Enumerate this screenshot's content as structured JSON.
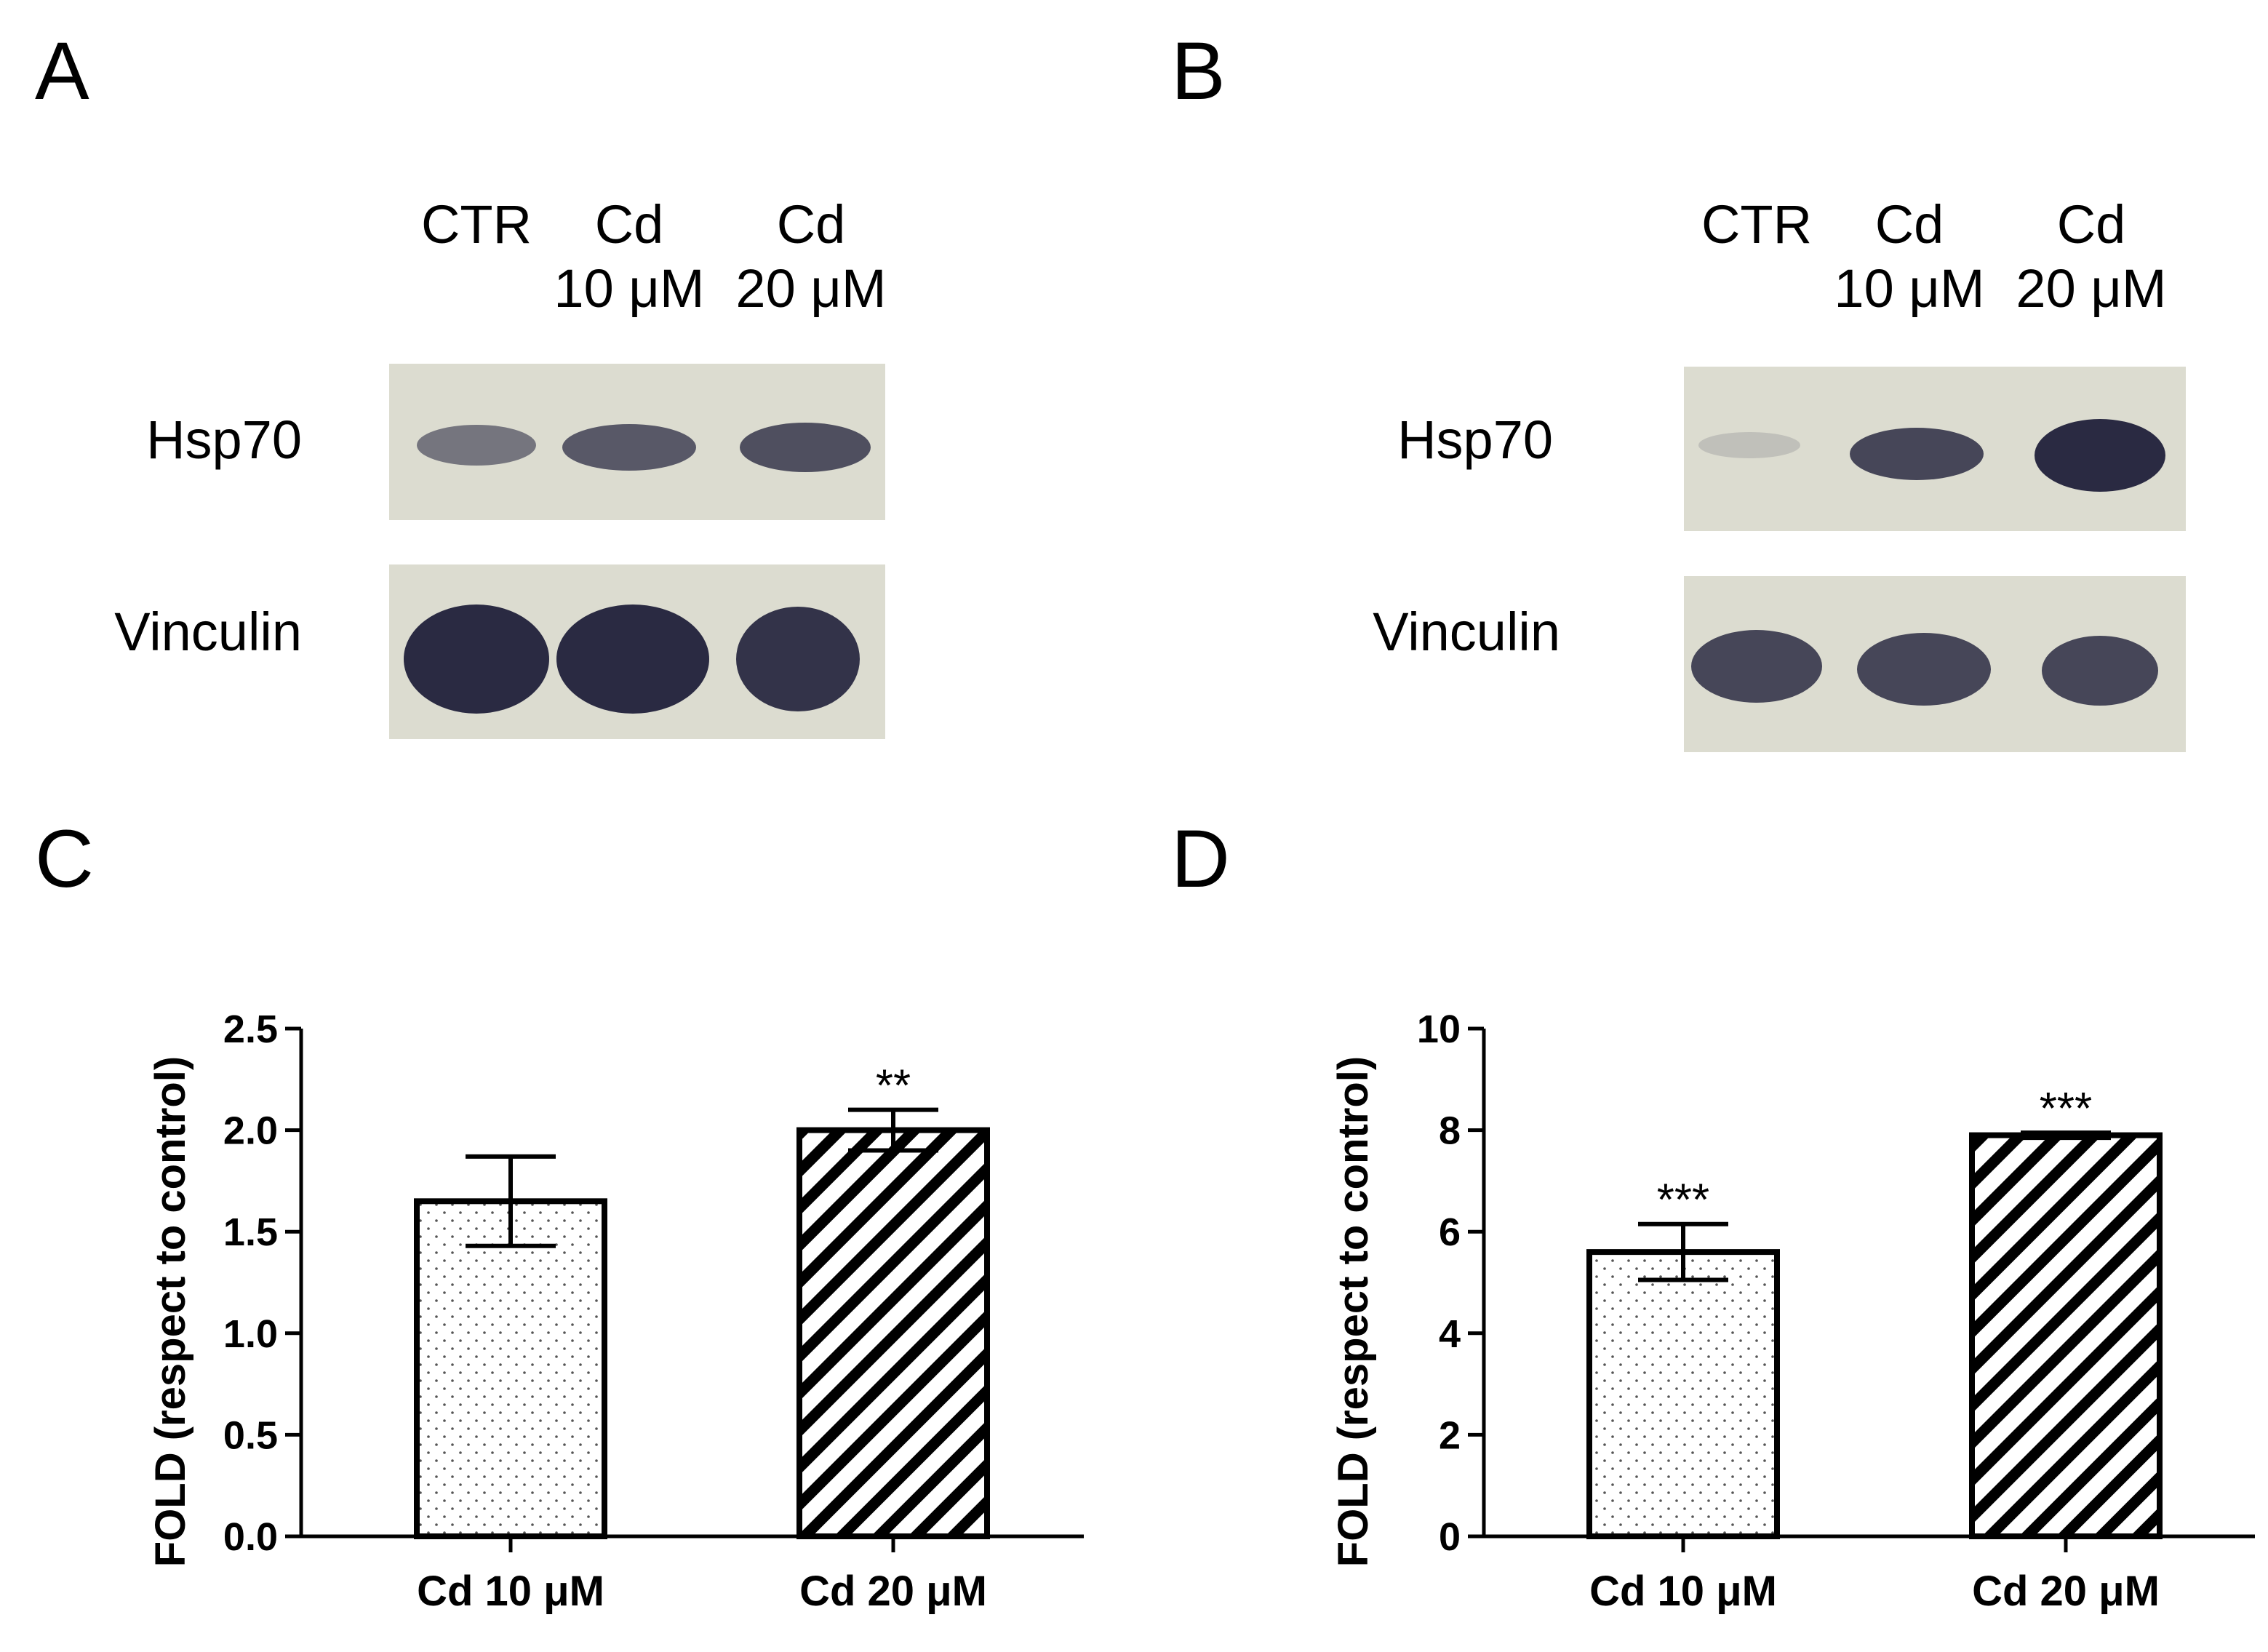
{
  "panels": {
    "A": {
      "letter": "A",
      "lanes": [
        {
          "line1": "CTR",
          "line2": ""
        },
        {
          "line1": "Cd",
          "line2": "10 μM"
        },
        {
          "line1": "Cd",
          "line2": "20 μM"
        }
      ],
      "rows": [
        {
          "label": "Hsp70",
          "bands": [
            0.55,
            0.7,
            0.75
          ]
        },
        {
          "label": "Vinculin",
          "bands": [
            0.95,
            0.95,
            0.9
          ]
        }
      ]
    },
    "B": {
      "letter": "B",
      "lanes": [
        {
          "line1": "CTR",
          "line2": ""
        },
        {
          "line1": "Cd",
          "line2": "10 μM"
        },
        {
          "line1": "Cd",
          "line2": "20 μM"
        }
      ],
      "rows": [
        {
          "label": "Hsp70",
          "bands": [
            0.15,
            0.8,
            0.95
          ]
        },
        {
          "label": "Vinculin",
          "bands": [
            0.8,
            0.8,
            0.8
          ]
        }
      ]
    },
    "C": {
      "letter": "C"
    },
    "D": {
      "letter": "D"
    }
  },
  "colors": {
    "blot_bg": "#dcdcd0",
    "band": "#20203a",
    "axis": "#000000",
    "bar_fill": "#ffffff"
  },
  "chart_data": [
    {
      "panel": "C",
      "type": "bar",
      "categories": [
        "Cd 10 μM",
        "Cd 20 μM"
      ],
      "values": [
        1.65,
        2.0
      ],
      "errors": [
        0.22,
        0.1
      ],
      "significance": [
        "",
        "**"
      ],
      "patterns": [
        "dots",
        "stripes"
      ],
      "ylabel": "FOLD (respect to control)",
      "ylim": [
        0,
        2.5
      ],
      "yticks": [
        "0.0",
        "0.5",
        "1.0",
        "1.5",
        "2.0",
        "2.5"
      ]
    },
    {
      "panel": "D",
      "type": "bar",
      "categories": [
        "Cd 10 μM",
        "Cd 20 μM"
      ],
      "values": [
        5.6,
        7.9
      ],
      "errors": [
        0.55,
        0.05
      ],
      "significance": [
        "***",
        "***"
      ],
      "patterns": [
        "dots",
        "stripes"
      ],
      "ylabel": "FOLD (respect to control)",
      "ylim": [
        0,
        10
      ],
      "yticks": [
        "0",
        "2",
        "4",
        "6",
        "8",
        "10"
      ]
    }
  ]
}
